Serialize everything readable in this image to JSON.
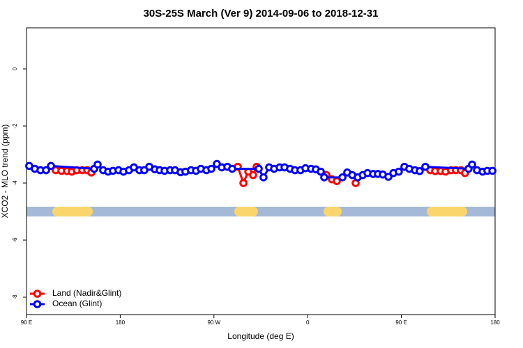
{
  "chart_data": {
    "type": "line",
    "title": "30S-25S March (Ver 9)   2014-09-06 to 2018-12-31",
    "x_label": "Longitude (deg E)",
    "y_label": "XCO2 - MLO trend (ppm)",
    "xlim": [
      90,
      540
    ],
    "ylim": [
      1.44,
      -8.61
    ],
    "xticks": [
      {
        "value": 90,
        "label": "90 E"
      },
      {
        "value": 180,
        "label": "180"
      },
      {
        "value": 270,
        "label": "90 W"
      },
      {
        "value": 360,
        "label": "0"
      },
      {
        "value": 450,
        "label": "90 E"
      },
      {
        "value": 540,
        "label": "180"
      }
    ],
    "yticks": [
      0,
      -2,
      -4,
      -6,
      -8
    ],
    "strip_y": -5,
    "strip_color": "#a4b9d8",
    "land_color": "#fad56b",
    "land_regions": [
      [
        114.8,
        153.6
      ],
      [
        289.5,
        312.3
      ],
      [
        375.2,
        392.7
      ],
      [
        474.4,
        513.2
      ]
    ],
    "series": [
      {
        "name": "Land (Nadir&Glint)",
        "color": "#ff0000",
        "x": [
          118.1,
          123.5,
          128.9,
          133.5,
          138.3,
          143.6,
          148.3,
          152.3,
          null,
          292.9,
          298.3,
          303,
          307.6,
          311,
          null,
          378,
          383.3,
          388,
          null,
          406.1,
          null,
          477.8,
          482.4,
          487.8,
          492.4,
          497.8,
          502.4,
          507.1,
          511.1
        ],
        "values": [
          -3.55,
          -3.57,
          -3.58,
          -3.6,
          -3.55,
          -3.55,
          -3.55,
          -3.63,
          null,
          -3.43,
          -4.0,
          -3.6,
          -3.72,
          -3.43,
          null,
          -3.72,
          -3.87,
          -3.93,
          null,
          -4.0,
          null,
          -3.55,
          -3.58,
          -3.58,
          -3.6,
          -3.55,
          -3.55,
          -3.55,
          -3.65
        ]
      },
      {
        "name": "Ocean (Glint)",
        "color": "#0000ff",
        "x": [
          92.6,
          98,
          103.4,
          108.8,
          113.5,
          155,
          158.3,
          163.6,
          168.4,
          173,
          178.4,
          183.1,
          188.4,
          193.1,
          198.5,
          203.1,
          207.9,
          213.3,
          217.9,
          222.6,
          228,
          232.6,
          238,
          242.6,
          248,
          252.8,
          257.4,
          262.8,
          267.5,
          272.8,
          277.5,
          282.9,
          287.5,
          313,
          317.6,
          323,
          327.8,
          333.1,
          337.8,
          343.1,
          347.8,
          353.1,
          357.9,
          363.3,
          367.9,
          372.6,
          375.9,
          393.4,
          398,
          402.8,
          408.1,
          412.9,
          417.5,
          422.9,
          427.5,
          432.1,
          437.5,
          442.3,
          447.5,
          452.9,
          457.6,
          463,
          467.6,
          473,
          514.5,
          517.9,
          522.6,
          528,
          532.6,
          537.4
        ],
        "values": [
          -3.4,
          -3.5,
          -3.55,
          -3.55,
          -3.4,
          -3.5,
          -3.35,
          -3.55,
          -3.6,
          -3.57,
          -3.55,
          -3.6,
          -3.55,
          -3.45,
          -3.55,
          -3.55,
          -3.43,
          -3.52,
          -3.55,
          -3.57,
          -3.55,
          -3.55,
          -3.62,
          -3.6,
          -3.55,
          -3.57,
          -3.5,
          -3.55,
          -3.5,
          -3.33,
          -3.45,
          -3.43,
          -3.5,
          -3.5,
          -3.8,
          -3.45,
          -3.5,
          -3.45,
          -3.45,
          -3.5,
          -3.55,
          -3.55,
          -3.48,
          -3.5,
          -3.52,
          -3.6,
          -3.8,
          -3.8,
          -3.63,
          -3.72,
          -3.8,
          -3.72,
          -3.65,
          -3.68,
          -3.68,
          -3.7,
          -3.78,
          -3.65,
          -3.6,
          -3.43,
          -3.5,
          -3.55,
          -3.58,
          -3.43,
          -3.5,
          -3.35,
          -3.55,
          -3.6,
          -3.57,
          -3.57
        ]
      }
    ]
  }
}
